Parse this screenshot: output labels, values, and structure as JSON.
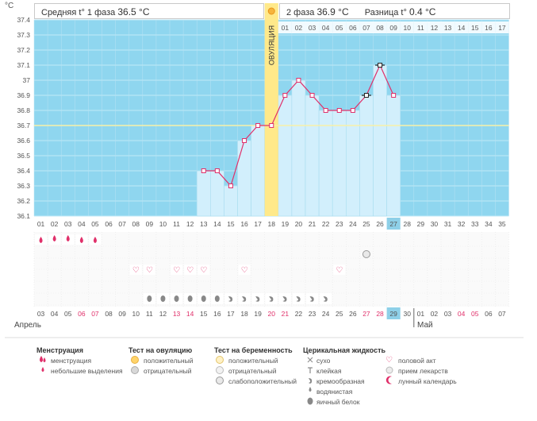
{
  "header": {
    "unit": "°C",
    "phase1_label": "Средняя t° 1 фаза",
    "phase1_value": "36.5 °C",
    "phase2_label": "2 фаза",
    "phase2_value": "36.9 °C",
    "diff_label": "Разница t°",
    "diff_value": "0.4 °C"
  },
  "ovulation_label": "ОВУЛЯЦИЯ",
  "months": {
    "april": "Апрель",
    "may": "Май"
  },
  "phase2_days": [
    "01",
    "02",
    "03",
    "04",
    "05",
    "06",
    "07",
    "08",
    "09",
    "10",
    "11",
    "12",
    "13",
    "14",
    "15",
    "16",
    "17"
  ],
  "cycle_days": [
    "01",
    "02",
    "03",
    "04",
    "05",
    "06",
    "07",
    "08",
    "09",
    "10",
    "11",
    "12",
    "13",
    "14",
    "15",
    "16",
    "17",
    "18",
    "19",
    "20",
    "21",
    "22",
    "23",
    "24",
    "25",
    "26",
    "27",
    "28",
    "29",
    "30",
    "31",
    "32",
    "33",
    "34",
    "35"
  ],
  "dates": [
    "03",
    "04",
    "05",
    "06",
    "07",
    "08",
    "09",
    "10",
    "11",
    "12",
    "13",
    "14",
    "15",
    "16",
    "17",
    "18",
    "19",
    "20",
    "21",
    "22",
    "23",
    "24",
    "25",
    "26",
    "27",
    "28",
    "29",
    "30",
    "01",
    "02",
    "03",
    "04",
    "05",
    "06",
    "07"
  ],
  "weekend_date_indices": [
    3,
    4,
    10,
    11,
    17,
    18,
    24,
    25,
    31,
    32
  ],
  "current_day_index": 26,
  "chart_data": {
    "type": "line",
    "xlabel": "",
    "ylabel": "°C",
    "ylim": [
      36.1,
      37.4
    ],
    "yticks": [
      "36.1",
      "36.2",
      "36.3",
      "36.4",
      "36.5",
      "36.6",
      "36.7",
      "36.8",
      "36.9",
      "37",
      "37.1",
      "37.2",
      "37.3",
      "37.4"
    ],
    "coverline": 36.7,
    "ovulation_day": 18,
    "series": [
      {
        "x": [
          13,
          14,
          15,
          16,
          17,
          18,
          19,
          20,
          21,
          22,
          23,
          24,
          25,
          26,
          27
        ],
        "values": [
          36.4,
          36.4,
          36.3,
          36.6,
          36.7,
          36.7,
          36.9,
          37.0,
          36.9,
          36.8,
          36.8,
          36.8,
          36.9,
          37.1,
          36.9
        ]
      }
    ],
    "excluded_days": [
      25,
      26
    ]
  },
  "legend": {
    "menstruation": {
      "title": "Менструация",
      "items": [
        "менструация",
        "небольшие выделения"
      ]
    },
    "ovulation_test": {
      "title": "Тест на овуляцию",
      "items": [
        "положительный",
        "отрицательный"
      ]
    },
    "pregnancy_test": {
      "title": "Тест на беременность",
      "items": [
        "положительный",
        "отрицательный",
        "слабоположительный"
      ]
    },
    "cervical_fluid": {
      "title": "Церикальная жидкость",
      "items": [
        "сухо",
        "клейкая",
        "кремообразная",
        "водянистая",
        "яичный белок"
      ]
    },
    "other": {
      "items": [
        "половой акт",
        "прием лекарств",
        "лунный календарь"
      ]
    }
  },
  "colors": {
    "plot_bg": "#8fd6ef",
    "fill": "#d2effc",
    "line": "#e0306a",
    "ovulation": "#ffe98a",
    "coverline": "#f7f0a8",
    "weekend": "#e0306a",
    "today": "#8ed0e8"
  }
}
